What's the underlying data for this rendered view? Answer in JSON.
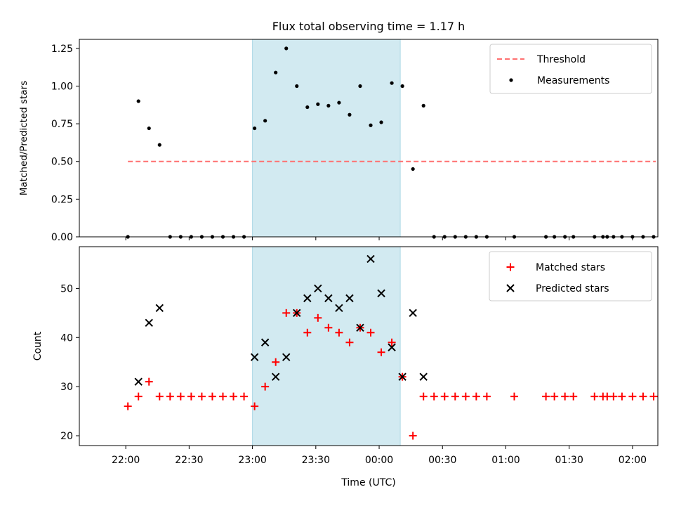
{
  "chart_data": [
    {
      "type": "scatter",
      "title": "Flux total observing time = 1.17 h",
      "xlabel": "",
      "ylabel": "Matched/Predicted stars",
      "x_axis": "time (minutes after 22:00 UTC)",
      "xlim": [
        -22,
        252
      ],
      "ylim": [
        0,
        1.31
      ],
      "yticks": [
        0.0,
        0.25,
        0.5,
        0.75,
        1.0,
        1.25
      ],
      "ytick_labels": [
        "0.00",
        "0.25",
        "0.50",
        "0.75",
        "1.00",
        "1.25"
      ],
      "shaded_interval": {
        "start": 60,
        "end": 130,
        "color": "#add8e6"
      },
      "legend": {
        "position": "upper right",
        "entries": [
          "Threshold",
          "Measurements"
        ]
      },
      "series": [
        {
          "name": "Threshold",
          "kind": "line",
          "style": "dashed",
          "color": "#ff7070",
          "x": [
            1,
            251
          ],
          "y": [
            0.5,
            0.5
          ]
        },
        {
          "name": "Measurements",
          "kind": "points",
          "color": "#000000",
          "x": [
            1,
            6,
            11,
            16,
            21,
            26,
            31,
            36,
            41,
            46,
            51,
            56,
            61,
            66,
            71,
            76,
            81,
            86,
            91,
            96,
            101,
            106,
            111,
            116,
            121,
            126,
            131,
            136,
            141,
            146,
            151,
            156,
            161,
            166,
            171,
            184,
            199,
            203,
            208,
            212,
            222,
            226,
            228,
            231,
            235,
            240,
            245,
            250
          ],
          "y": [
            0,
            0.9,
            0.72,
            0.61,
            0,
            0,
            0,
            0,
            0,
            0,
            0,
            0,
            0.72,
            0.77,
            1.09,
            1.25,
            1.0,
            0.86,
            0.88,
            0.87,
            0.89,
            0.81,
            1.0,
            0.74,
            0.76,
            1.02,
            1.0,
            0.45,
            0.87,
            0,
            0,
            0,
            0,
            0,
            0,
            0,
            0,
            0,
            0,
            0,
            0,
            0,
            0,
            0,
            0,
            0,
            0,
            0
          ]
        }
      ]
    },
    {
      "type": "scatter",
      "title": "",
      "xlabel": "Time (UTC)",
      "ylabel": "Count",
      "x_axis": "time (minutes after 22:00 UTC)",
      "xlim": [
        -22,
        252
      ],
      "ylim": [
        18,
        58.5
      ],
      "yticks": [
        20,
        30,
        40,
        50
      ],
      "ytick_labels": [
        "20",
        "30",
        "40",
        "50"
      ],
      "xticks": [
        0,
        30,
        60,
        90,
        120,
        150,
        180,
        210,
        240
      ],
      "xtick_labels": [
        "22:00",
        "22:30",
        "23:00",
        "23:30",
        "00:00",
        "00:30",
        "01:00",
        "01:30",
        "02:00"
      ],
      "shaded_interval": {
        "start": 60,
        "end": 130,
        "color": "#add8e6"
      },
      "legend": {
        "position": "upper right",
        "entries": [
          "Matched stars",
          "Predicted stars"
        ]
      },
      "series": [
        {
          "name": "Matched stars",
          "marker": "+",
          "color": "#ff0000",
          "x": [
            1,
            6,
            11,
            16,
            21,
            26,
            31,
            36,
            41,
            46,
            51,
            56,
            61,
            66,
            71,
            76,
            81,
            86,
            91,
            96,
            101,
            106,
            111,
            116,
            121,
            126,
            131,
            136,
            141,
            146,
            151,
            156,
            161,
            166,
            171,
            184,
            199,
            203,
            208,
            212,
            222,
            226,
            228,
            231,
            235,
            240,
            245,
            250
          ],
          "y": [
            26,
            28,
            31,
            28,
            28,
            28,
            28,
            28,
            28,
            28,
            28,
            28,
            26,
            30,
            35,
            45,
            45,
            41,
            44,
            42,
            41,
            39,
            42,
            41,
            37,
            39,
            32,
            20,
            28,
            28,
            28,
            28,
            28,
            28,
            28,
            28,
            28,
            28,
            28,
            28,
            28,
            28,
            28,
            28,
            28,
            28,
            28,
            28
          ]
        },
        {
          "name": "Predicted stars",
          "marker": "x",
          "color": "#000000",
          "x": [
            6,
            11,
            16,
            61,
            66,
            71,
            76,
            81,
            86,
            91,
            96,
            101,
            106,
            111,
            116,
            121,
            126,
            131,
            136,
            141
          ],
          "y": [
            31,
            43,
            46,
            36,
            39,
            32,
            36,
            45,
            48,
            50,
            48,
            46,
            48,
            42,
            56,
            49,
            38,
            32,
            45,
            32
          ]
        }
      ]
    }
  ]
}
